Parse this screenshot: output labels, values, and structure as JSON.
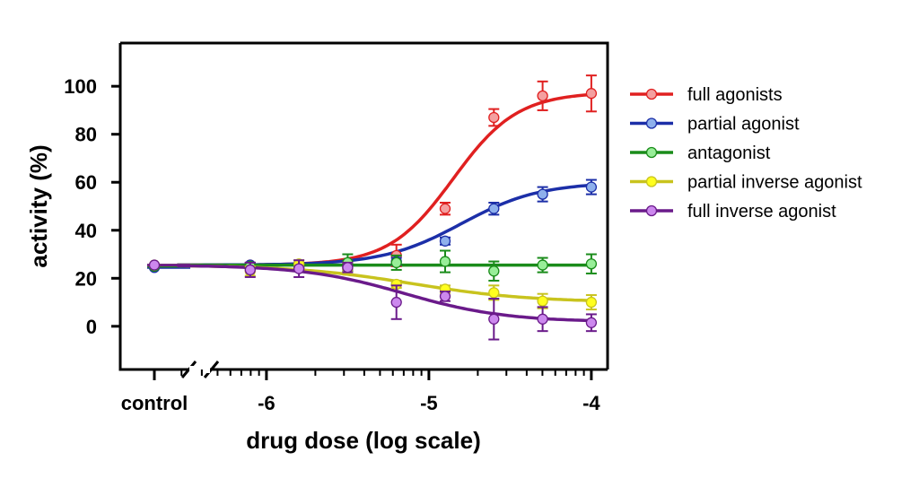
{
  "chart_data": {
    "type": "line",
    "title": "",
    "xlabel": "drug dose (log scale)",
    "ylabel": "activity (%)",
    "xscale": "log",
    "xlim": [
      -6.9,
      -3.9
    ],
    "ylim": [
      -18,
      118
    ],
    "xticks": [
      -6,
      -5,
      -4
    ],
    "xtick_labels": [
      "-6",
      "-5",
      "-4"
    ],
    "control_label": "control",
    "yticks": [
      0,
      20,
      40,
      60,
      80,
      100
    ],
    "ytick_labels": [
      "0",
      "20",
      "40",
      "60",
      "80",
      "100"
    ],
    "legend_position": "right",
    "x_points": [
      -6.1,
      -5.8,
      -5.5,
      -5.2,
      -4.9,
      -4.6,
      -4.3,
      -4.0
    ],
    "series": [
      {
        "name": "full agonists",
        "line_color": "#e02020",
        "marker_color": "#f4a0a0",
        "control": 25,
        "values": [
          25.5,
          25.5,
          25,
          29.5,
          49,
          87,
          96,
          97
        ],
        "errors": [
          1,
          1,
          1,
          4.5,
          2.5,
          3.5,
          6,
          7.5
        ],
        "fit": {
          "bottom": 25.5,
          "top": 97.5,
          "logEC50": -4.85,
          "hill": 2.2
        }
      },
      {
        "name": "partial agonist",
        "line_color": "#1c2fa8",
        "marker_color": "#8eb0ec",
        "control": 24.5,
        "values": [
          25.5,
          25,
          24.5,
          27,
          35.5,
          49,
          55,
          58
        ],
        "errors": [
          1,
          1,
          1,
          1.5,
          1.5,
          2.5,
          3,
          3
        ],
        "fit": {
          "bottom": 25.5,
          "top": 60,
          "logEC50": -4.8,
          "hill": 1.8
        }
      },
      {
        "name": "antagonist",
        "line_color": "#1a8c1a",
        "marker_color": "#98ee98",
        "control": 25,
        "values": [
          25,
          25.5,
          26.5,
          26.5,
          27,
          23,
          25.5,
          26
        ],
        "errors": [
          1,
          1,
          3.5,
          3,
          4.5,
          4,
          3,
          4
        ],
        "fit": {
          "bottom": 25.5,
          "top": 25.5,
          "logEC50": -5,
          "hill": 1
        }
      },
      {
        "name": "partial inverse agonist",
        "line_color": "#c8c31e",
        "marker_color": "#ffff1e",
        "control": 25.5,
        "values": [
          23,
          26,
          24,
          17.5,
          15.5,
          14,
          10.5,
          10
        ],
        "errors": [
          2,
          1.5,
          2.5,
          1.5,
          1.5,
          3,
          3,
          3
        ],
        "fit": {
          "bottom": 25.5,
          "top": 10,
          "logEC50": -5.1,
          "hill": 1.2
        }
      },
      {
        "name": "full inverse agonist",
        "line_color": "#6a1a8a",
        "marker_color": "#cc88ee",
        "control": 25.5,
        "values": [
          23.5,
          24,
          24.5,
          10,
          12.5,
          3,
          3,
          1.5
        ],
        "errors": [
          3,
          3.5,
          2,
          7,
          2,
          8.5,
          5,
          3.5
        ],
        "fit": {
          "bottom": 25.5,
          "top": 1.8,
          "logEC50": -5.15,
          "hill": 1.4
        }
      }
    ]
  }
}
